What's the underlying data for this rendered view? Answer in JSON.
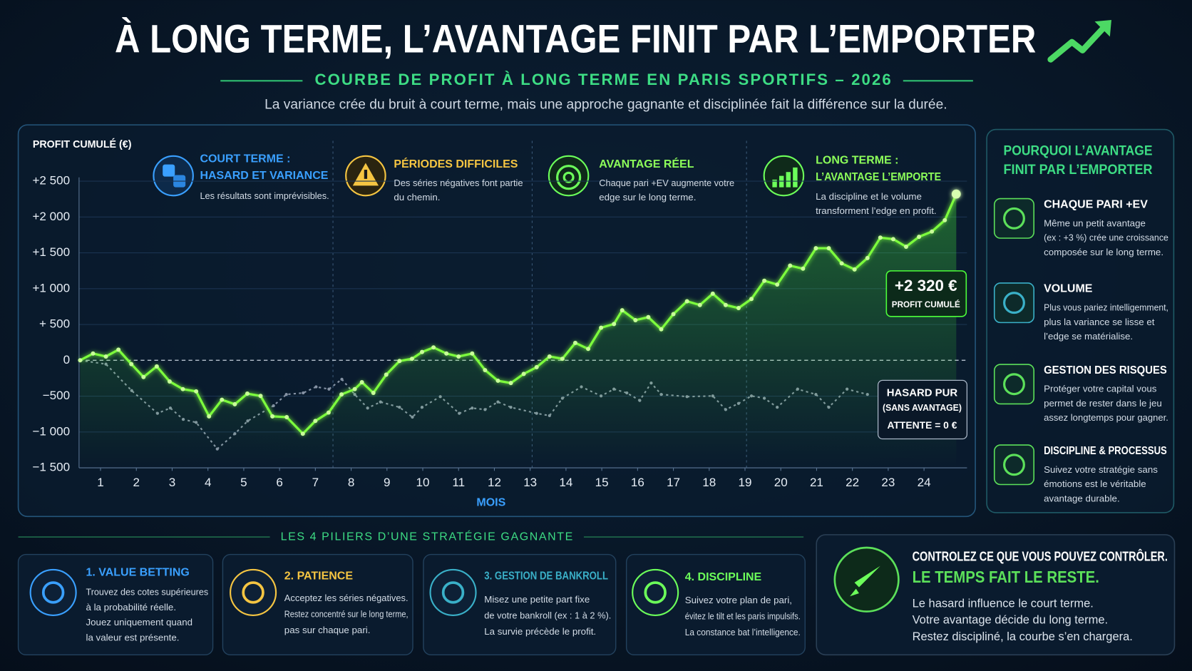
{
  "header": {
    "title": "À LONG TERME, L’AVANTAGE FINIT PAR L’EMPORTER",
    "subtitle": "COURBE DE PROFIT À LONG TERME EN PARIS SPORTIFS – 2026",
    "description": "La variance crée du bruit à court terme, mais une approche gagnante et disciplinée fait la différence sur la durée."
  },
  "chart_data": {
    "type": "line",
    "ylabel": "PROFIT CUMULÉ (€)",
    "xlabel": "MOIS",
    "xlim": [
      0.4,
      25.2
    ],
    "xticks": [
      1,
      2,
      3,
      4,
      5,
      6,
      7,
      8,
      9,
      10,
      11,
      12,
      13,
      14,
      15,
      16,
      17,
      18,
      19,
      20,
      21,
      22,
      23,
      24
    ],
    "ylim": [
      -1500,
      2500
    ],
    "yticks": [
      {
        "value": -1500,
        "label": "−1 500"
      },
      {
        "value": -1000,
        "label": "−1 000"
      },
      {
        "value": -500,
        "label": "−500"
      },
      0,
      {
        "value": 500,
        "label": "+ 500"
      },
      {
        "value": 1000,
        "label": "+1 000"
      },
      {
        "value": 1500,
        "label": "+1 500"
      },
      {
        "value": 2000,
        "label": "+2 000"
      },
      {
        "value": 2500,
        "label": "+2 500"
      }
    ],
    "grid": true,
    "series": [
      {
        "name": "PROFIT CUMULÉ",
        "color": "#7dff3c",
        "end_label": "+2 320 €",
        "x": [
          0.43,
          0.79,
          1.15,
          1.5,
          1.86,
          2.2,
          2.57,
          2.93,
          3.3,
          3.67,
          4.03,
          4.39,
          4.75,
          5.1,
          5.47,
          5.8,
          6.2,
          6.65,
          7.0,
          7.37,
          7.73,
          8.1,
          8.3,
          8.62,
          8.98,
          9.35,
          9.7,
          9.98,
          10.3,
          10.66,
          11.0,
          11.38,
          11.74,
          12.1,
          12.46,
          12.82,
          13.18,
          13.54,
          13.9,
          14.26,
          14.62,
          14.98,
          15.34,
          15.57,
          15.94,
          16.3,
          16.66,
          17.0,
          17.38,
          17.74,
          18.1,
          18.46,
          18.82,
          19.18,
          19.54,
          19.9,
          20.26,
          20.62,
          20.98,
          21.34,
          21.7,
          22.06,
          22.42,
          22.78,
          23.14,
          23.5,
          23.86,
          24.22,
          24.58,
          24.9
        ],
        "values": [
          0,
          95,
          53,
          148,
          -53,
          -233,
          -85,
          -296,
          -402,
          -433,
          -782,
          -550,
          -613,
          -465,
          -497,
          -782,
          -793,
          -1025,
          -846,
          -729,
          -476,
          -402,
          -306,
          -455,
          -200,
          -10,
          21,
          116,
          180,
          95,
          53,
          95,
          -137,
          -285,
          -317,
          -190,
          -95,
          53,
          21,
          243,
          159,
          454,
          507,
          698,
          560,
          602,
          433,
          645,
          824,
          772,
          930,
          772,
          729,
          856,
          1110,
          1057,
          1321,
          1279,
          1564,
          1564,
          1353,
          1268,
          1427,
          1712,
          1691,
          1585,
          1723,
          1797,
          1955,
          2320
        ]
      },
      {
        "name": "HASARD PUR",
        "color": "#8592a4",
        "dashed": true,
        "note": "(SANS AVANTAGE)",
        "expectation": "ATTENTE = 0 €",
        "x": [
          0.43,
          1.15,
          1.87,
          2.59,
          2.95,
          3.31,
          3.67,
          4.26,
          4.75,
          5.11,
          5.83,
          6.19,
          6.66,
          7.02,
          7.38,
          7.74,
          8.1,
          8.46,
          8.82,
          9.35,
          9.71,
          9.98,
          10.49,
          11.02,
          11.38,
          11.74,
          12.1,
          12.46,
          13.18,
          13.54,
          13.9,
          14.43,
          14.98,
          15.34,
          15.7,
          16.06,
          16.38,
          16.66,
          17.38,
          18.1,
          18.46,
          18.82,
          19.18,
          19.54,
          19.9,
          20.47,
          20.98,
          21.34,
          21.85,
          22.42
        ],
        "values": [
          0,
          -53,
          -423,
          -740,
          -666,
          -824,
          -867,
          -1237,
          -1025,
          -846,
          -634,
          -476,
          -455,
          -370,
          -402,
          -264,
          -476,
          -666,
          -581,
          -655,
          -793,
          -655,
          -507,
          -740,
          -666,
          -687,
          -581,
          -655,
          -740,
          -772,
          -529,
          -370,
          -497,
          -402,
          -455,
          -560,
          -317,
          -476,
          -507,
          -497,
          -687,
          -602,
          -497,
          -529,
          -655,
          -402,
          -476,
          -655,
          -402,
          -476
        ]
      }
    ],
    "phases": [
      {
        "title": [
          "COURT TERME :",
          "HASARD ET VARIANCE"
        ],
        "text": [
          "Les résultats sont imprévisibles."
        ]
      },
      {
        "title": [
          "PÉRIODES DIFFICILES"
        ],
        "text": [
          "Des séries négatives font partie",
          "du chemin."
        ]
      },
      {
        "title": [
          "AVANTAGE RÉEL"
        ],
        "text": [
          "Chaque pari +EV augmente votre",
          "edge sur le long terme."
        ]
      },
      {
        "title": [
          "LONG TERME :",
          "L’AVANTAGE L’EMPORTE"
        ],
        "text": [
          "La discipline et le volume",
          "transforment l’edge en profit."
        ]
      }
    ]
  },
  "sidebar": {
    "title": [
      "POURQUOI L’AVANTAGE",
      "FINIT PAR L’EMPORTER"
    ],
    "items": [
      {
        "title": "CHAQUE PARI +EV",
        "text": [
          "Même un petit avantage",
          "(ex : +3 %) crée une croissance",
          "composée sur le long terme."
        ]
      },
      {
        "title": "VOLUME",
        "text": [
          "Plus vous pariez intelligemment,",
          "plus la variance se lisse et",
          "l’edge se matérialise."
        ]
      },
      {
        "title": "GESTION DES RISQUES",
        "text": [
          "Protéger votre capital vous",
          "permet de rester dans le jeu",
          "assez longtemps pour gagner."
        ]
      },
      {
        "title": "DISCIPLINE & PROCESSUS",
        "text": [
          "Suivez votre stratégie sans",
          "émotions est le véritable",
          "avantage durable."
        ]
      }
    ]
  },
  "pillars": {
    "title": "LES 4 PILIERS D’UNE STRATÉGIE GAGNANTE",
    "items": [
      {
        "title": "1. VALUE BETTING",
        "text": [
          "Trouvez des cotes supérieures",
          "à la probabilité réelle.",
          "Jouez uniquement quand",
          "la valeur est présente."
        ]
      },
      {
        "title": "2. PATIENCE",
        "text": [
          "Acceptez les séries négatives.",
          "Restez concentré sur le long terme,",
          "pas sur chaque pari."
        ]
      },
      {
        "title": "3. GESTION DE BANKROLL",
        "text": [
          "Misez une petite part fixe",
          "de votre bankroll (ex : 1 à 2 %).",
          "La survie précède le profit."
        ]
      },
      {
        "title": "4. DISCIPLINE",
        "text": [
          "Suivez votre plan de pari,",
          "évitez le tilt et les paris impulsifs.",
          "La constance bat l’intelligence."
        ]
      }
    ]
  },
  "closing": {
    "title": "CONTROLEZ CE QUE VOUS POUVEZ CONTRÔLER.",
    "highlight": "LE TEMPS FAIT LE RESTE.",
    "text": [
      "Le hasard influence le court terme.",
      "Votre avantage décide du long terme.",
      "Restez discipliné, la courbe s’en chargera."
    ]
  }
}
